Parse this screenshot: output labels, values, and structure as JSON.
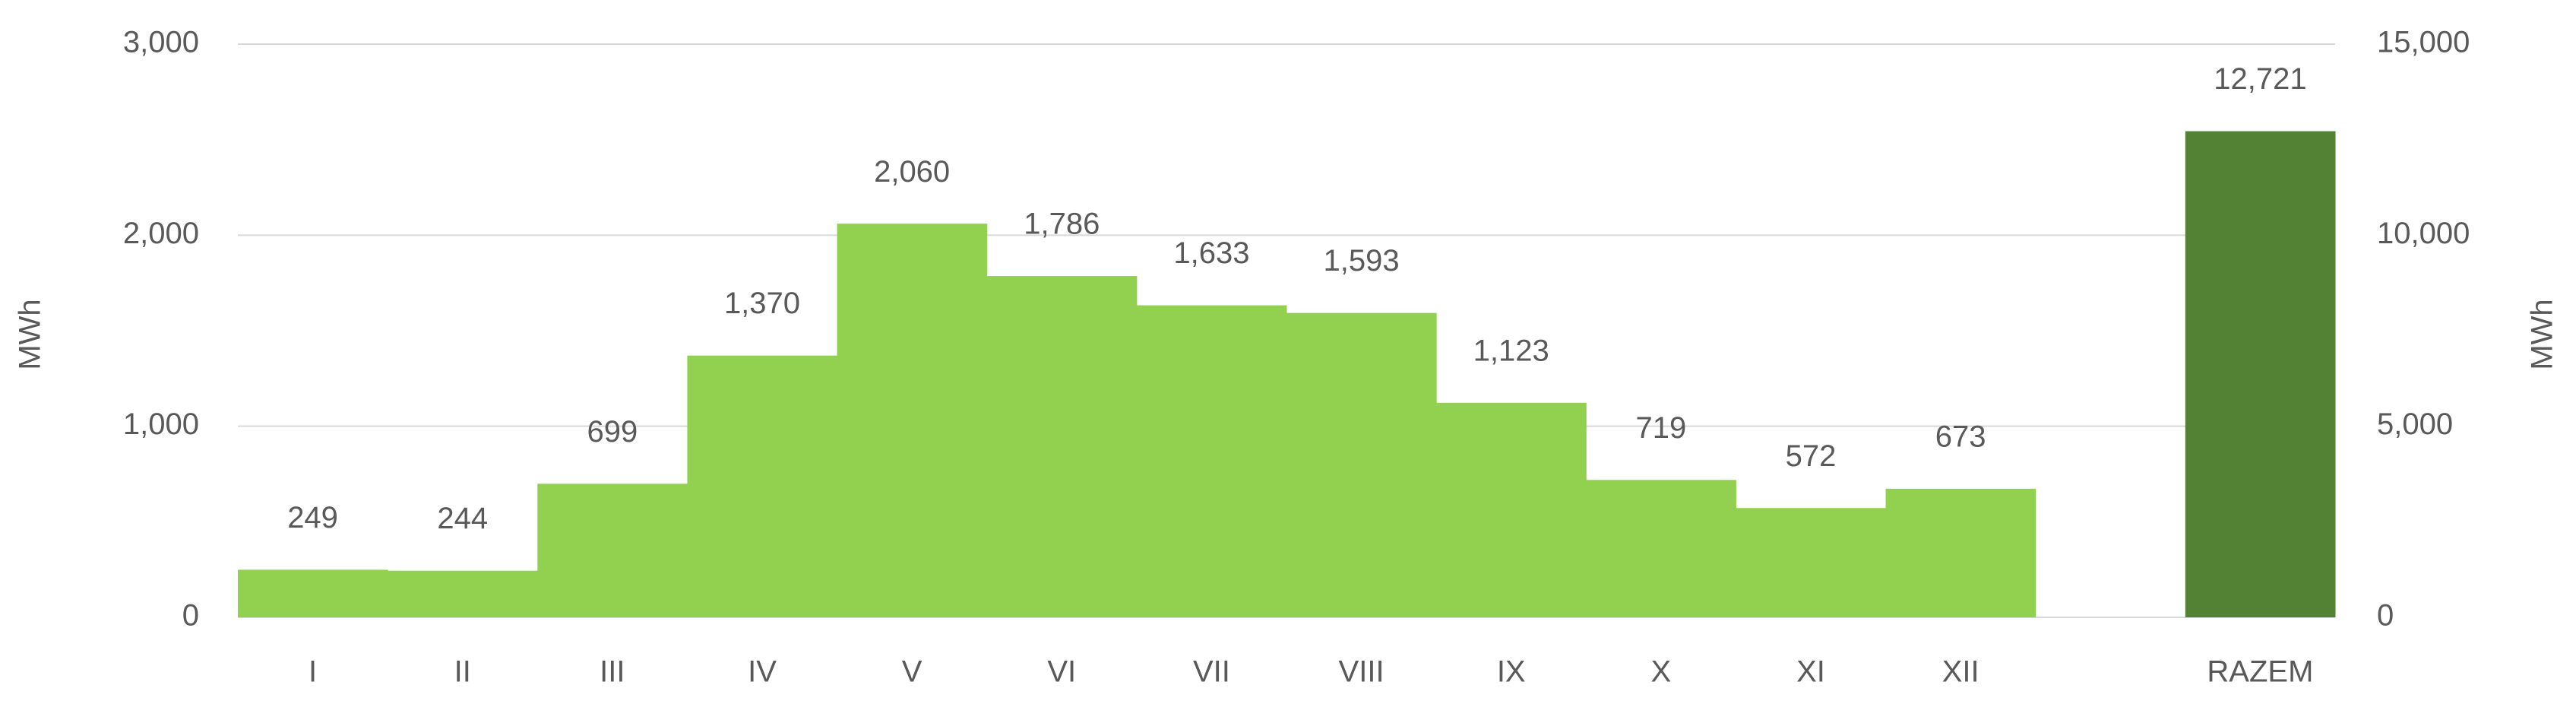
{
  "chart_data": {
    "type": "bar",
    "categories": [
      "I",
      "II",
      "III",
      "IV",
      "V",
      "VI",
      "VII",
      "VIII",
      "IX",
      "X",
      "XI",
      "XII",
      null,
      "RAZEM"
    ],
    "series": [
      {
        "color": "#92d050",
        "values": [
          249,
          244,
          699,
          1370,
          2060,
          1786,
          1633,
          1593,
          1123,
          719,
          572,
          673,
          null,
          null
        ],
        "value_labels": [
          "249",
          "244",
          "699",
          "1,370",
          "2,060",
          "1,786",
          "1,633",
          "1,593",
          "1,123",
          "719",
          "572",
          "673",
          null,
          null
        ]
      },
      {
        "color": "#548235",
        "axis": "y2",
        "values": [
          null,
          null,
          null,
          null,
          null,
          null,
          null,
          null,
          null,
          null,
          null,
          null,
          null,
          12721
        ],
        "value_labels": [
          null,
          null,
          null,
          null,
          null,
          null,
          null,
          null,
          null,
          null,
          null,
          null,
          null,
          "12,721"
        ]
      }
    ],
    "y_label": "MWh",
    "y2_label": "MWh",
    "ylim": [
      0,
      3000
    ],
    "yticks": [
      0,
      {
        "value": 1000,
        "label": "1,000"
      },
      {
        "value": 2000,
        "label": "2,000"
      },
      {
        "value": 3000,
        "label": "3,000"
      }
    ],
    "y2lim": [
      0,
      15000
    ],
    "y2ticks": [
      0,
      {
        "value": 5000,
        "label": "5,000"
      },
      {
        "value": 10000,
        "label": "10,000"
      },
      {
        "value": 15000,
        "label": "15,000"
      }
    ],
    "grid": true
  }
}
